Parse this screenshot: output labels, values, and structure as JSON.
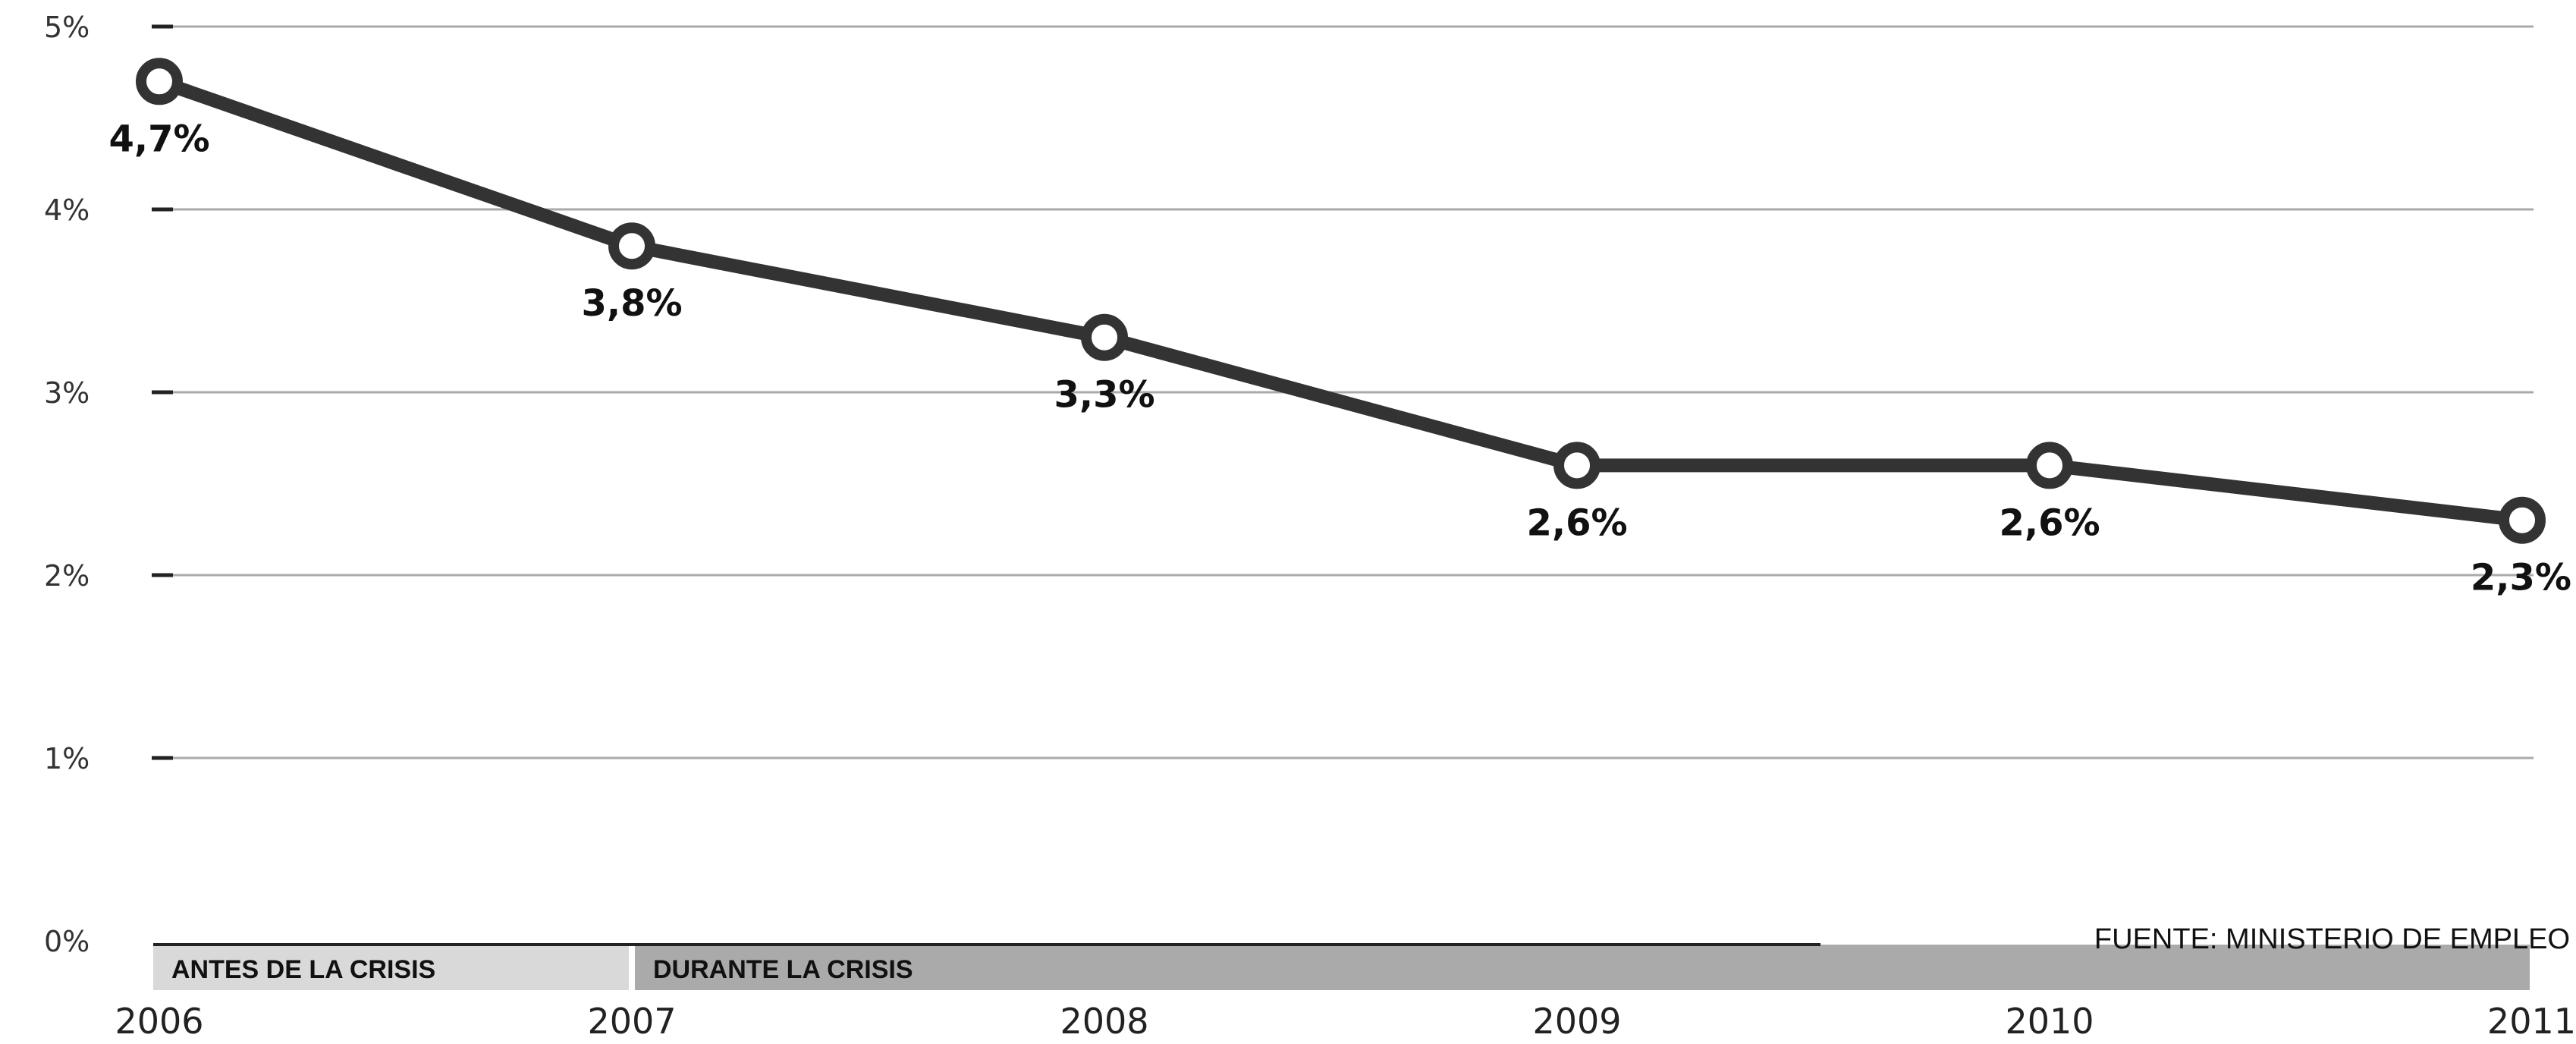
{
  "chart_data": {
    "type": "line",
    "x": [
      "2006",
      "2007",
      "2008",
      "2009",
      "2010",
      "2011"
    ],
    "series": [
      {
        "values": [
          4.7,
          3.8,
          3.3,
          2.6,
          2.6,
          2.3
        ],
        "labels": [
          "4,7%",
          "3,8%",
          "3,3%",
          "2,6%",
          "2,6%",
          "2,3%"
        ]
      }
    ],
    "y_ticks": [
      {
        "value": 0,
        "label": "0%"
      },
      {
        "value": 1,
        "label": "1%"
      },
      {
        "value": 2,
        "label": "2%"
      },
      {
        "value": 3,
        "label": "3%"
      },
      {
        "value": 4,
        "label": "4%"
      },
      {
        "value": 5,
        "label": "5%"
      }
    ],
    "ylim": [
      0,
      5
    ],
    "grid": true,
    "title": "",
    "xlabel": "",
    "ylabel": "",
    "periods": [
      {
        "label": "ANTES DE LA CRISIS",
        "from": "2006",
        "to": "2007"
      },
      {
        "label": "DURANTE LA CRISIS",
        "from": "2007",
        "to": "2011"
      }
    ],
    "source": "FUENTE: MINISTERIO DE EMPLEO",
    "colors": {
      "line": "#333333",
      "grid": "#aaaaaa",
      "before_crisis_band": "#d9d9d9",
      "during_crisis_band": "#aaaaaa"
    }
  }
}
